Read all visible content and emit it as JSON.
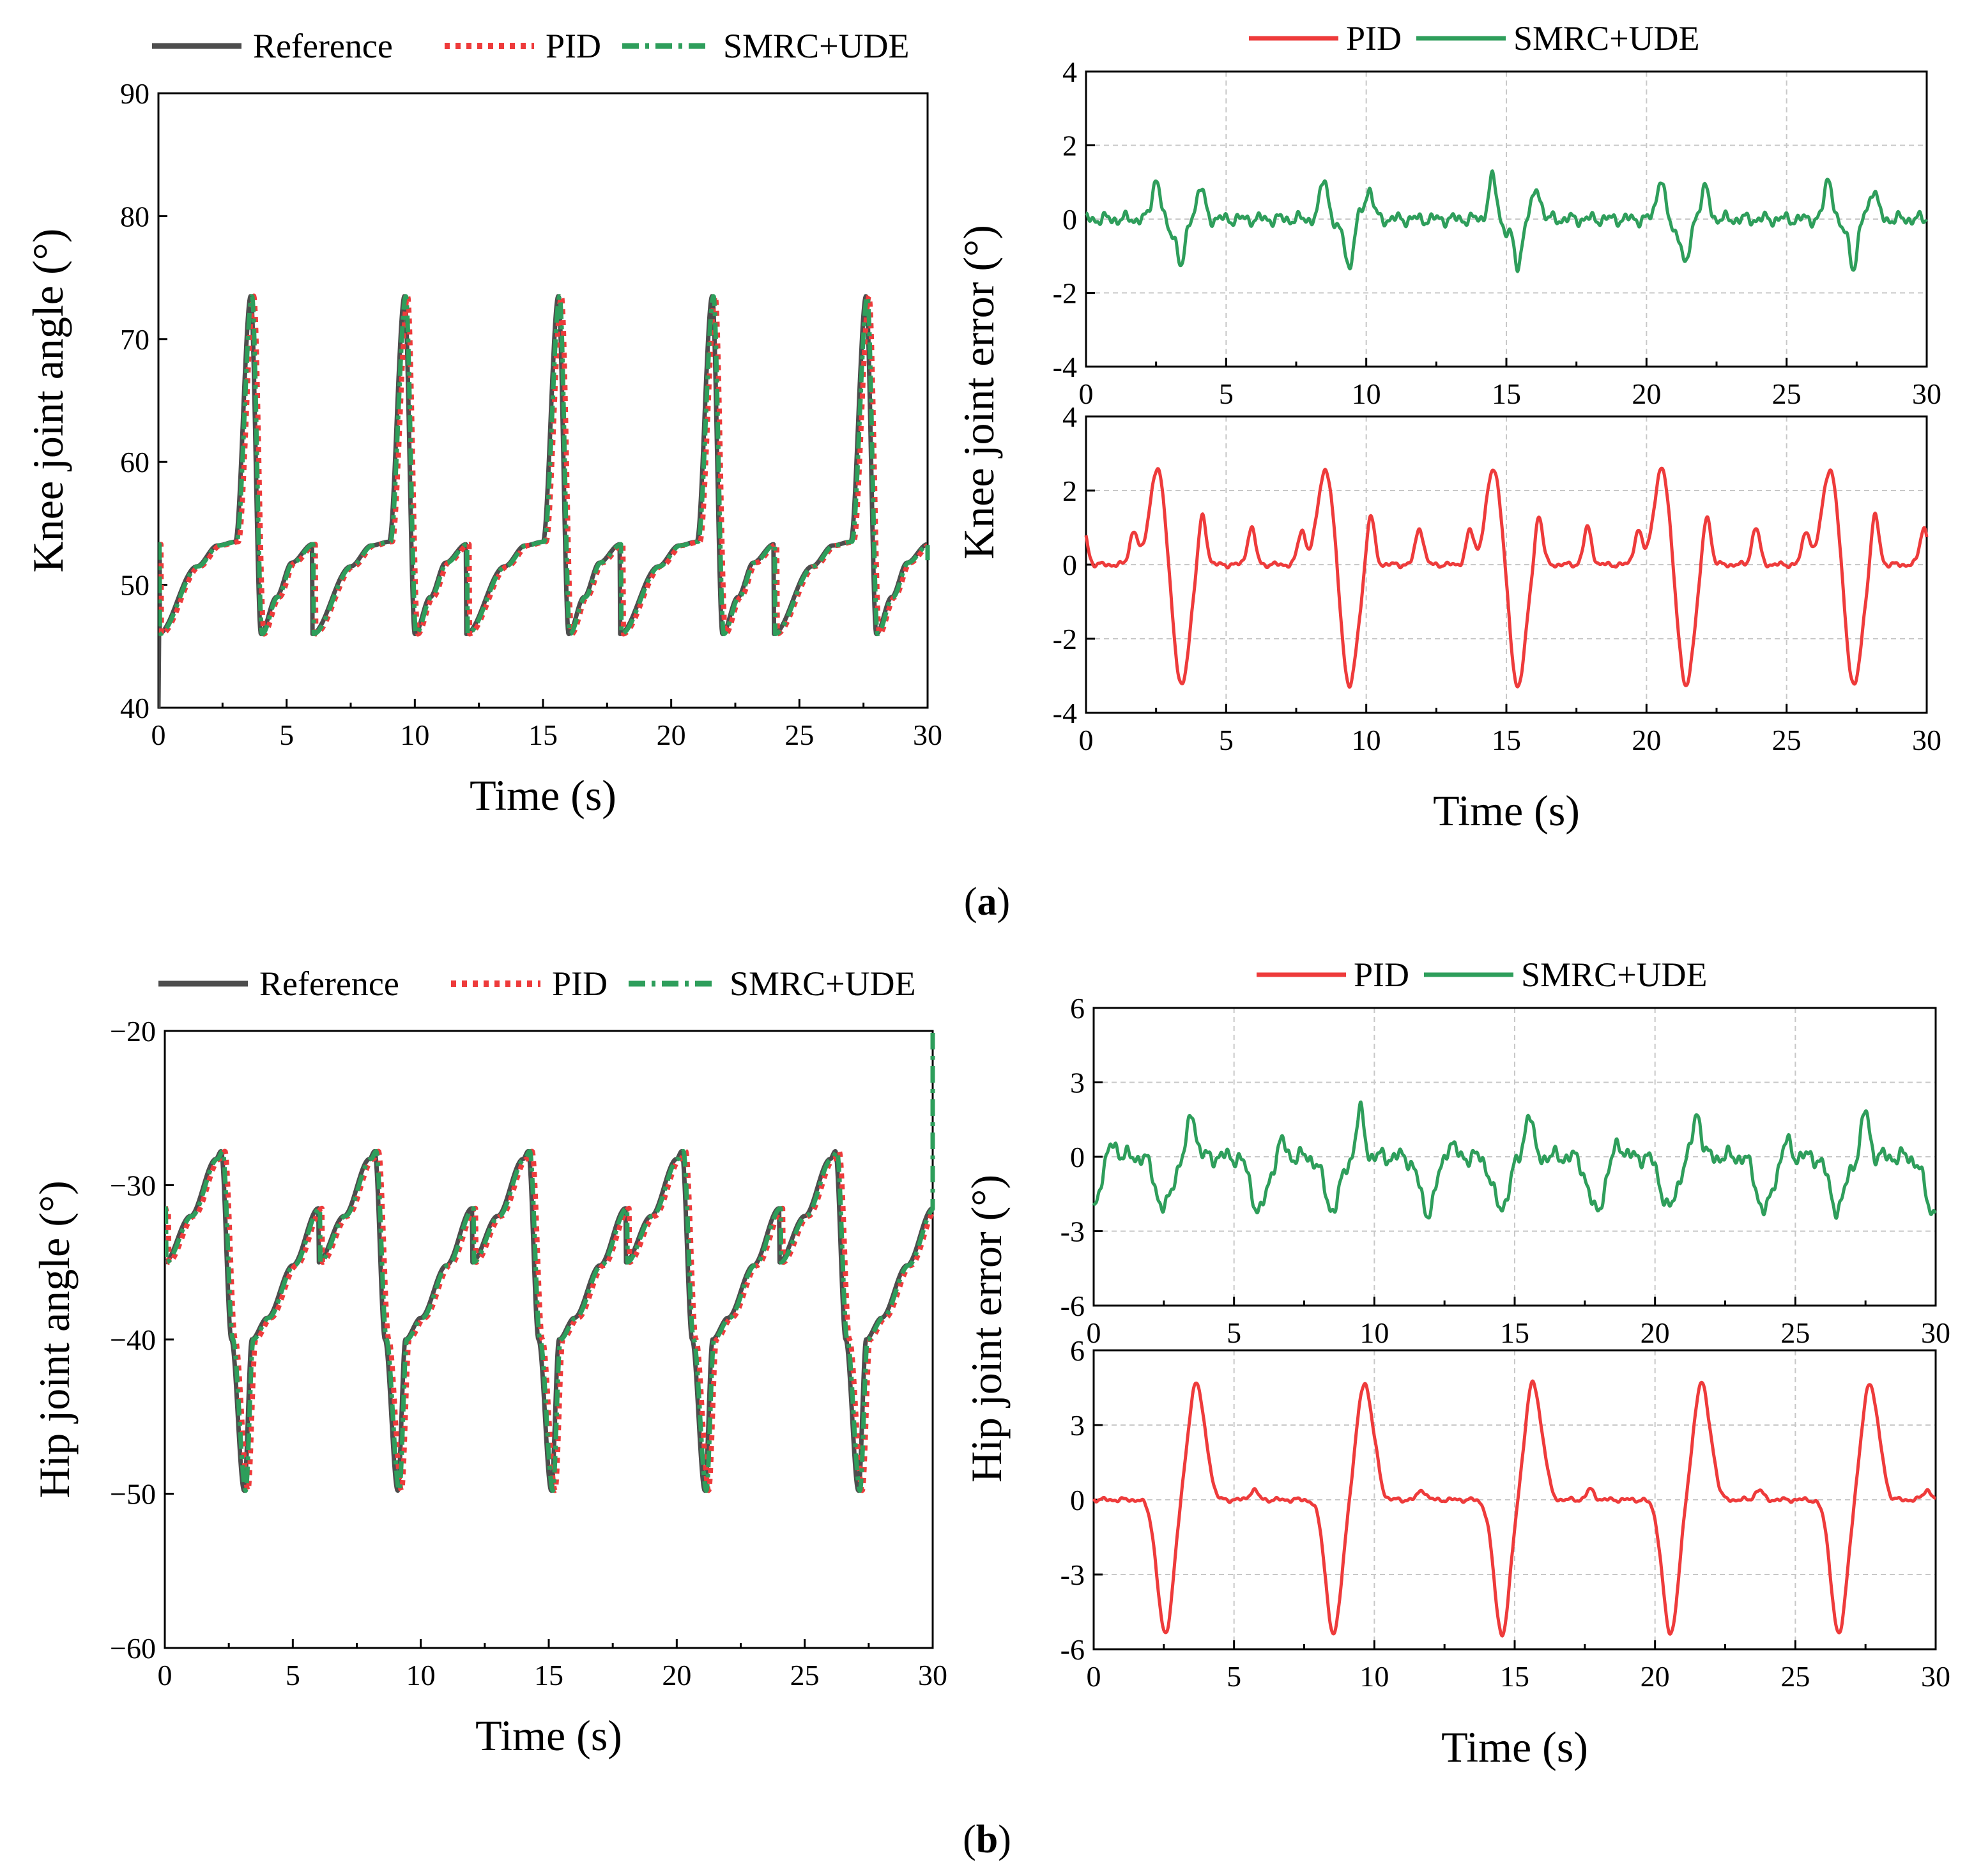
{
  "colors": {
    "reference": "#4d4d4d",
    "pid": "#ee3b3b",
    "smrc": "#2e9e5b"
  },
  "panel_labels": {
    "a_letter": "a",
    "b_letter": "b"
  },
  "chart_data": [
    {
      "id": "knee_angle",
      "type": "line",
      "panel": "a",
      "title": "",
      "xlabel": "Time (s)",
      "ylabel": "Knee joint angle (°)",
      "xlim": [
        0,
        30
      ],
      "ylim": [
        40,
        90
      ],
      "xticks": [
        "0",
        "5",
        "10",
        "15",
        "20",
        "25",
        "30"
      ],
      "yticks": [
        "40",
        "50",
        "60",
        "70",
        "80",
        "90"
      ],
      "grid": false,
      "legend": "top",
      "period": 6,
      "series": [
        {
          "name": "Reference",
          "style": "solid",
          "offset": 0
        },
        {
          "name": "PID",
          "style": "dotted",
          "offset": 0.12
        },
        {
          "name": "SMRC+UDE",
          "style": "dashdot",
          "offset": 0.05
        }
      ],
      "cycle_shape": {
        "t": [
          0,
          1.5,
          2.3,
          3.0,
          3.6,
          4.0,
          4.6,
          5.2,
          6.0
        ],
        "y": [
          46,
          51.5,
          53.2,
          53.5,
          73.5,
          46,
          49,
          51.8,
          53.3
        ]
      },
      "start": [
        [
          0,
          40
        ],
        [
          0.05,
          52
        ]
      ],
      "end_value": 52
    },
    {
      "id": "knee_error_smrc",
      "type": "line",
      "panel": "a",
      "title": "",
      "xlabel": "",
      "ylabel": "Knee joint error (°)",
      "xlim": [
        0,
        30
      ],
      "ylim": [
        -4,
        4
      ],
      "xticks": [
        "0",
        "5",
        "10",
        "15",
        "20",
        "25",
        "30"
      ],
      "yticks": [
        "-4",
        "-2",
        "0",
        "2",
        "4"
      ],
      "grid": true,
      "legend": "top",
      "series": [
        {
          "name": "SMRC+UDE",
          "color_key": "smrc"
        }
      ],
      "period": 6,
      "cycle_start": 2.2,
      "events": [
        [
          0.3,
          1.1
        ],
        [
          0.8,
          -0.3
        ],
        [
          1.2,
          -1.3
        ],
        [
          1.6,
          0.1
        ],
        [
          1.9,
          0.8
        ]
      ],
      "noise": 0.2
    },
    {
      "id": "knee_error_pid",
      "type": "line",
      "panel": "a",
      "title": "",
      "xlabel": "Time (s)",
      "ylabel": "",
      "xlim": [
        0,
        30
      ],
      "ylim": [
        -4,
        4
      ],
      "xticks": [
        "0",
        "5",
        "10",
        "15",
        "20",
        "25",
        "30"
      ],
      "yticks": [
        "-4",
        "-2",
        "0",
        "2",
        "4"
      ],
      "grid": true,
      "legend": "top",
      "series": [
        {
          "name": "PID",
          "color_key": "pid"
        }
      ],
      "period": 6,
      "cycle_start": 2.2,
      "events": [
        [
          0.35,
          2.6
        ],
        [
          1.2,
          -3.3
        ],
        [
          1.95,
          1.4
        ],
        [
          3.7,
          1.0
        ],
        [
          5.5,
          0.9
        ]
      ],
      "noise": 0.08
    },
    {
      "id": "hip_angle",
      "type": "line",
      "panel": "b",
      "title": "",
      "xlabel": "Time (s)",
      "ylabel": "Hip joint angle (°)",
      "xlim": [
        0,
        30
      ],
      "ylim": [
        -60,
        -20
      ],
      "xticks": [
        "0",
        "5",
        "10",
        "15",
        "20",
        "25",
        "30"
      ],
      "yticks": [
        "−60",
        "−50",
        "−40",
        "−30",
        "−20"
      ],
      "grid": false,
      "legend": "top",
      "period": 6,
      "series": [
        {
          "name": "Reference",
          "style": "solid",
          "offset": 0
        },
        {
          "name": "PID",
          "style": "dotted",
          "offset": 0.15
        },
        {
          "name": "SMRC+UDE",
          "style": "dashdot",
          "offset": 0.06
        }
      ],
      "cycle_shape": {
        "t": [
          0,
          1.0,
          2.0,
          2.2,
          2.6,
          3.1,
          3.4,
          4.0,
          5.0,
          6.0
        ],
        "y": [
          -35,
          -32,
          -28.3,
          -27.8,
          -40,
          -49.8,
          -40,
          -38.6,
          -35.2,
          -31.5
        ]
      },
      "start": [
        [
          0,
          -35
        ]
      ],
      "end_value": -20
    },
    {
      "id": "hip_error_smrc",
      "type": "line",
      "panel": "b",
      "title": "",
      "xlabel": "",
      "ylabel": "Hip joint error (°)",
      "xlim": [
        0,
        30
      ],
      "ylim": [
        -6,
        6
      ],
      "xticks": [
        "0",
        "5",
        "10",
        "15",
        "20",
        "25",
        "30"
      ],
      "yticks": [
        "-6",
        "-3",
        "0",
        "3",
        "6"
      ],
      "grid": true,
      "legend": "top",
      "series": [
        {
          "name": "SMRC+UDE",
          "color_key": "smrc"
        }
      ],
      "period": 6,
      "cycle_start": 2.2,
      "events": [
        [
          0.3,
          -2.1
        ],
        [
          1.3,
          1.8
        ],
        [
          3.7,
          -2.2
        ],
        [
          4.5,
          0.6
        ]
      ],
      "noise": 0.4
    },
    {
      "id": "hip_error_pid",
      "type": "line",
      "panel": "b",
      "title": "",
      "xlabel": "Time (s)",
      "ylabel": "",
      "xlim": [
        0,
        30
      ],
      "ylim": [
        -6,
        6
      ],
      "xticks": [
        "0",
        "5",
        "10",
        "15",
        "20",
        "25",
        "30"
      ],
      "yticks": [
        "-6",
        "-3",
        "0",
        "3",
        "6"
      ],
      "grid": true,
      "legend": "top",
      "series": [
        {
          "name": "PID",
          "color_key": "pid"
        }
      ],
      "period": 6,
      "cycle_start": 2.2,
      "events": [
        [
          0.35,
          -5.4
        ],
        [
          1.45,
          4.7
        ],
        [
          1.9,
          0.5
        ],
        [
          3.5,
          0.4
        ]
      ],
      "noise": 0.1
    }
  ]
}
